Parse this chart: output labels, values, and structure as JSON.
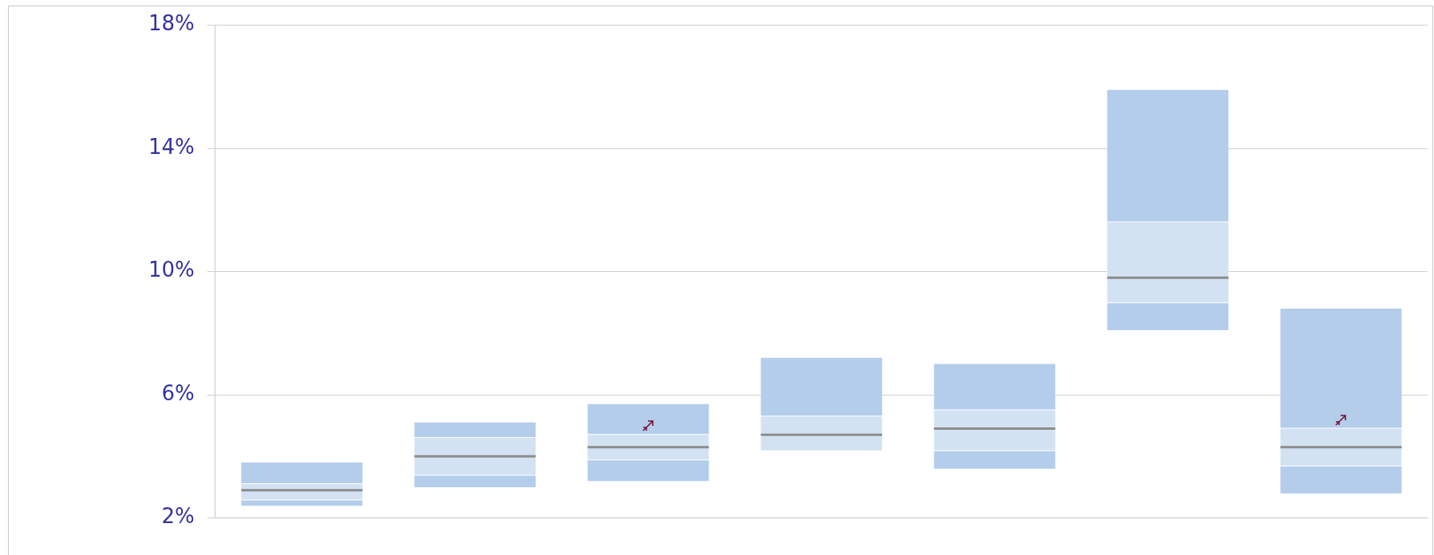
{
  "chart_data": {
    "type": "box",
    "categories": [
      null,
      null,
      null,
      null,
      null,
      null,
      null
    ],
    "series": [
      {
        "color": "#d3e2f3",
        "boxes": [
          {
            "low": 2.4,
            "q1": 2.6,
            "median": 2.9,
            "q3": 3.1,
            "high": 3.8
          },
          {
            "low": 3.0,
            "q1": 3.4,
            "median": 4.0,
            "q3": 4.6,
            "high": 5.1
          },
          {
            "low": 3.2,
            "q1": 3.9,
            "median": 4.3,
            "q3": 4.7,
            "high": 5.7
          },
          {
            "low": 4.2,
            "q1": 4.2,
            "median": 4.7,
            "q3": 5.3,
            "high": 7.2
          },
          {
            "low": 3.6,
            "q1": 4.2,
            "median": 4.9,
            "q3": 5.5,
            "high": 7.0
          },
          {
            "low": 8.1,
            "q1": 9.0,
            "median": 9.8,
            "q3": 11.6,
            "high": 15.9
          },
          {
            "low": 2.8,
            "q1": 3.7,
            "median": 4.3,
            "q3": 4.9,
            "high": 8.8
          }
        ]
      }
    ],
    "ylim": [
      2,
      18
    ],
    "yticks": [
      {
        "value": 2,
        "label": "2%"
      },
      {
        "value": 6,
        "label": "6%"
      },
      {
        "value": 10,
        "label": "10%"
      },
      {
        "value": 14,
        "label": "14%"
      },
      {
        "value": 18,
        "label": "18%"
      }
    ],
    "grid": "y",
    "legend": false
  }
}
